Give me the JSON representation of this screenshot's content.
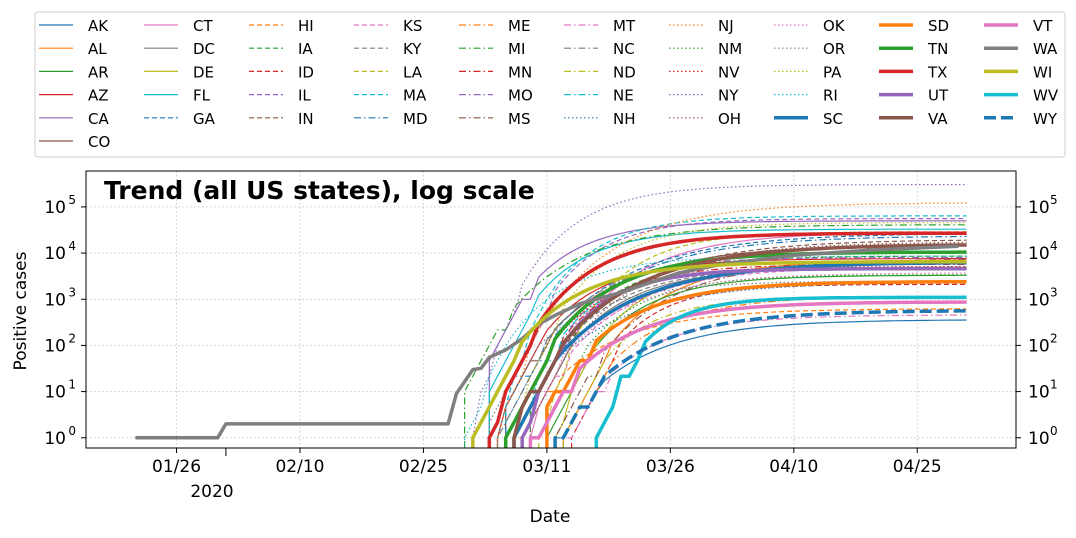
{
  "chart_data": {
    "type": "line",
    "title": "Trend (all US states), log scale",
    "xlabel": "Date",
    "ylabel": "Positive cases",
    "yscale": "log",
    "ylim": [
      0.6,
      600000
    ],
    "xlim": [
      "2020-01-15",
      "2020-05-07"
    ],
    "x_ticks": [
      "01/26",
      "02/10",
      "02/25",
      "03/11",
      "03/26",
      "04/10",
      "04/25"
    ],
    "x_year_label": "2020",
    "y_ticks": [
      "10^0",
      "10^1",
      "10^2",
      "10^3",
      "10^4",
      "10^5"
    ],
    "grid": true,
    "legend_placement": "top (above plot, 10 columns)",
    "series": [
      {
        "name": "AK",
        "color": "#1f77b4",
        "dash": "solid",
        "width": 1.2,
        "start": "2020-03-12",
        "v0": 1,
        "end": 355
      },
      {
        "name": "AL",
        "color": "#ff7f0e",
        "dash": "solid",
        "width": 1.2,
        "start": "2020-03-13",
        "v0": 1,
        "end": 7000
      },
      {
        "name": "AR",
        "color": "#2ca02c",
        "dash": "solid",
        "width": 1.2,
        "start": "2020-03-11",
        "v0": 1,
        "end": 3300
      },
      {
        "name": "AZ",
        "color": "#d62728",
        "dash": "solid",
        "width": 1.2,
        "start": "2020-03-05",
        "v0": 2,
        "end": 7600
      },
      {
        "name": "CA",
        "color": "#9467bd",
        "dash": "solid",
        "width": 1.2,
        "start": "2020-03-04",
        "v0": 50,
        "end": 50000
      },
      {
        "name": "CO",
        "color": "#8c564b",
        "dash": "solid",
        "width": 1.2,
        "start": "2020-03-06",
        "v0": 8,
        "end": 15000
      },
      {
        "name": "CT",
        "color": "#e377c2",
        "dash": "solid",
        "width": 1.2,
        "start": "2020-03-09",
        "v0": 2,
        "end": 28000
      },
      {
        "name": "DC",
        "color": "#7f7f7f",
        "dash": "solid",
        "width": 1.2,
        "start": "2020-03-08",
        "v0": 1,
        "end": 4800
      },
      {
        "name": "DE",
        "color": "#bcbd22",
        "dash": "solid",
        "width": 1.2,
        "start": "2020-03-12",
        "v0": 1,
        "end": 4900
      },
      {
        "name": "FL",
        "color": "#17becf",
        "dash": "solid",
        "width": 1.2,
        "start": "2020-03-04",
        "v0": 10,
        "end": 33000
      },
      {
        "name": "GA",
        "color": "#1f77b4",
        "dash": "dashed",
        "width": 1.2,
        "start": "2020-03-05",
        "v0": 2,
        "end": 26000
      },
      {
        "name": "HI",
        "color": "#ff7f0e",
        "dash": "dashed",
        "width": 1.2,
        "start": "2020-03-07",
        "v0": 1,
        "end": 620
      },
      {
        "name": "IA",
        "color": "#2ca02c",
        "dash": "dashed",
        "width": 1.2,
        "start": "2020-03-09",
        "v0": 5,
        "end": 8600
      },
      {
        "name": "ID",
        "color": "#d62728",
        "dash": "dashed",
        "width": 1.2,
        "start": "2020-03-14",
        "v0": 1,
        "end": 2100
      },
      {
        "name": "IL",
        "color": "#9467bd",
        "dash": "dashed",
        "width": 1.2,
        "start": "2020-03-06",
        "v0": 6,
        "end": 56000
      },
      {
        "name": "IN",
        "color": "#8c564b",
        "dash": "dashed",
        "width": 1.2,
        "start": "2020-03-07",
        "v0": 1,
        "end": 19000
      },
      {
        "name": "KS",
        "color": "#e377c2",
        "dash": "dashed",
        "width": 1.2,
        "start": "2020-03-08",
        "v0": 1,
        "end": 4900
      },
      {
        "name": "KY",
        "color": "#7f7f7f",
        "dash": "dashed",
        "width": 1.2,
        "start": "2020-03-07",
        "v0": 1,
        "end": 5000
      },
      {
        "name": "LA",
        "color": "#bcbd22",
        "dash": "dashed",
        "width": 1.2,
        "start": "2020-03-10",
        "v0": 1,
        "end": 29000
      },
      {
        "name": "MA",
        "color": "#17becf",
        "dash": "dashed",
        "width": 1.2,
        "start": "2020-03-06",
        "v0": 8,
        "end": 64000
      },
      {
        "name": "MD",
        "color": "#1f77b4",
        "dash": "dashdot",
        "width": 1.2,
        "start": "2020-03-06",
        "v0": 3,
        "end": 23000
      },
      {
        "name": "ME",
        "color": "#ff7f0e",
        "dash": "dashdot",
        "width": 1.2,
        "start": "2020-03-13",
        "v0": 1,
        "end": 1150
      },
      {
        "name": "MI",
        "color": "#2ca02c",
        "dash": "dashdot",
        "width": 1.2,
        "start": "2020-03-01",
        "v0": 10,
        "end": 41000
      },
      {
        "name": "MN",
        "color": "#d62728",
        "dash": "dashdot",
        "width": 1.2,
        "start": "2020-03-07",
        "v0": 1,
        "end": 5700
      },
      {
        "name": "MO",
        "color": "#9467bd",
        "dash": "dashdot",
        "width": 1.2,
        "start": "2020-03-08",
        "v0": 1,
        "end": 8000
      },
      {
        "name": "MS",
        "color": "#8c564b",
        "dash": "dashdot",
        "width": 1.2,
        "start": "2020-03-12",
        "v0": 1,
        "end": 7200
      },
      {
        "name": "MT",
        "color": "#e377c2",
        "dash": "dashdot",
        "width": 1.2,
        "start": "2020-03-13",
        "v0": 1,
        "end": 455
      },
      {
        "name": "NC",
        "color": "#7f7f7f",
        "dash": "dashdot",
        "width": 1.2,
        "start": "2020-03-05",
        "v0": 1,
        "end": 10500
      },
      {
        "name": "ND",
        "color": "#bcbd22",
        "dash": "dashdot",
        "width": 1.2,
        "start": "2020-03-13",
        "v0": 1,
        "end": 1100
      },
      {
        "name": "NE",
        "color": "#17becf",
        "dash": "dashdot",
        "width": 1.2,
        "start": "2020-03-07",
        "v0": 1,
        "end": 4500
      },
      {
        "name": "NH",
        "color": "#1f77b4",
        "dash": "dotted",
        "width": 1.2,
        "start": "2020-03-06",
        "v0": 2,
        "end": 2300
      },
      {
        "name": "NJ",
        "color": "#ff7f0e",
        "dash": "dotted",
        "width": 1.2,
        "start": "2020-03-05",
        "v0": 2,
        "end": 121000
      },
      {
        "name": "NM",
        "color": "#2ca02c",
        "dash": "dotted",
        "width": 1.2,
        "start": "2020-03-11",
        "v0": 3,
        "end": 3400
      },
      {
        "name": "NV",
        "color": "#d62728",
        "dash": "dotted",
        "width": 1.2,
        "start": "2020-03-06",
        "v0": 1,
        "end": 5100
      },
      {
        "name": "NY",
        "color": "#9467bd",
        "dash": "dotted",
        "width": 1.2,
        "start": "2020-03-02",
        "v0": 2,
        "end": 305000
      },
      {
        "name": "OH",
        "color": "#8c564b",
        "dash": "dotted",
        "width": 1.2,
        "start": "2020-03-09",
        "v0": 3,
        "end": 17000
      },
      {
        "name": "OK",
        "color": "#e377c2",
        "dash": "dotted",
        "width": 1.2,
        "start": "2020-03-07",
        "v0": 1,
        "end": 3700
      },
      {
        "name": "OR",
        "color": "#7f7f7f",
        "dash": "dotted",
        "width": 1.2,
        "start": "2020-03-04",
        "v0": 3,
        "end": 2500
      },
      {
        "name": "PA",
        "color": "#bcbd22",
        "dash": "dotted",
        "width": 1.2,
        "start": "2020-03-07",
        "v0": 2,
        "end": 46000
      },
      {
        "name": "RI",
        "color": "#17becf",
        "dash": "dotted",
        "width": 1.2,
        "start": "2020-03-01",
        "v0": 1,
        "end": 8600
      },
      {
        "name": "SC",
        "color": "#1f77b4",
        "dash": "solid",
        "width": 3.5,
        "start": "2020-03-07",
        "v0": 2,
        "end": 6200
      },
      {
        "name": "SD",
        "color": "#ff7f0e",
        "dash": "solid",
        "width": 3.5,
        "start": "2020-03-11",
        "v0": 5,
        "end": 2400
      },
      {
        "name": "TN",
        "color": "#2ca02c",
        "dash": "solid",
        "width": 3.5,
        "start": "2020-03-06",
        "v0": 1,
        "end": 10500
      },
      {
        "name": "TX",
        "color": "#d62728",
        "dash": "solid",
        "width": 3.5,
        "start": "2020-03-04",
        "v0": 1,
        "end": 27000
      },
      {
        "name": "UT",
        "color": "#9467bd",
        "dash": "solid",
        "width": 3.5,
        "start": "2020-03-08",
        "v0": 1,
        "end": 4600
      },
      {
        "name": "VA",
        "color": "#8c564b",
        "dash": "solid",
        "width": 3.5,
        "start": "2020-03-07",
        "v0": 2,
        "end": 15000
      },
      {
        "name": "VT",
        "color": "#e377c2",
        "dash": "solid",
        "width": 3.5,
        "start": "2020-03-09",
        "v0": 1,
        "end": 870
      },
      {
        "name": "WA",
        "color": "#7f7f7f",
        "dash": "solid",
        "width": 3.5,
        "start": "2020-01-21",
        "v0": 1,
        "end": 14000
      },
      {
        "name": "WI",
        "color": "#bcbd22",
        "dash": "solid",
        "width": 3.5,
        "start": "2020-03-02",
        "v0": 1,
        "end": 6500
      },
      {
        "name": "WV",
        "color": "#17becf",
        "dash": "solid",
        "width": 3.5,
        "start": "2020-03-17",
        "v0": 1,
        "end": 1100
      },
      {
        "name": "WY",
        "color": "#1f77b4",
        "dash": "dashed",
        "width": 3.5,
        "start": "2020-03-12",
        "v0": 1,
        "end": 560
      }
    ],
    "wa_points": [
      [
        "2020-01-21",
        1
      ],
      [
        "2020-01-31",
        1
      ],
      [
        "2020-02-01",
        2
      ],
      [
        "2020-02-28",
        2
      ],
      [
        "2020-02-29",
        9
      ],
      [
        "2020-03-02",
        30
      ],
      [
        "2020-03-03",
        32
      ],
      [
        "2020-03-04",
        55
      ],
      [
        "2020-03-06",
        80
      ],
      [
        "2020-03-08",
        140
      ],
      [
        "2020-03-10",
        290
      ],
      [
        "2020-03-12",
        450
      ],
      [
        "2020-03-15",
        800
      ],
      [
        "2020-03-20",
        1400
      ],
      [
        "2020-03-27",
        3700
      ],
      [
        "2020-04-01",
        5600
      ],
      [
        "2020-04-10",
        9000
      ],
      [
        "2020-04-20",
        11800
      ],
      [
        "2020-04-30",
        14000
      ]
    ]
  }
}
